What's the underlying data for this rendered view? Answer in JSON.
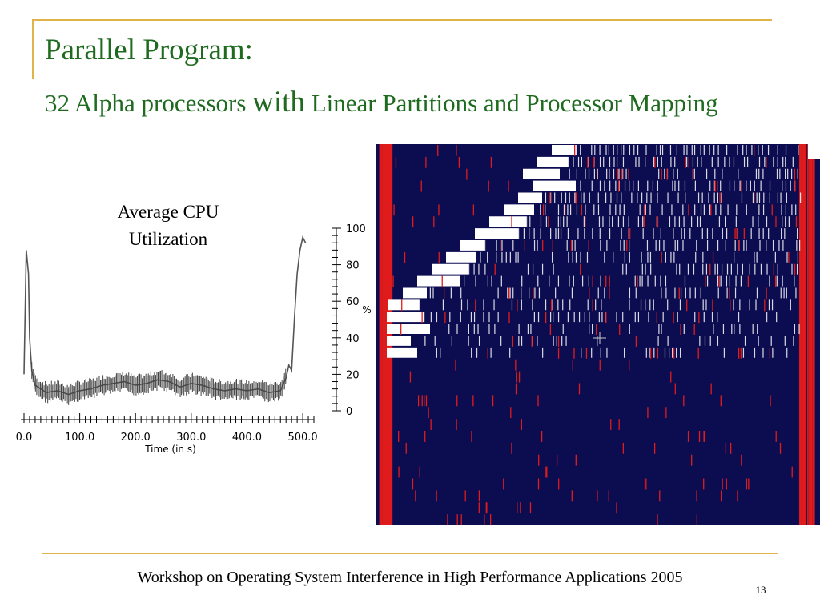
{
  "slide": {
    "title": "Parallel Program:",
    "subtitle_pre": "32 Alpha processors",
    "subtitle_with": "with",
    "subtitle_post": "Linear Partitions and Processor Mapping",
    "cpu_label": "Average CPU Utilization",
    "footer": "Workshop on Operating System Interference in High Performance Applications 2005",
    "slide_number": "13"
  },
  "colors": {
    "title": "#1e6a1e",
    "rule": "#e0b44a",
    "heatmap_bg": "#0c0c50",
    "heatmap_hot": "#e01c1c",
    "heatmap_busy": "#ffffff"
  },
  "chart_data": [
    {
      "type": "line",
      "xlabel": "Time (in s)",
      "x_ticks": [
        "0.0",
        "100.0",
        "200.0",
        "300.0",
        "400.0",
        "500.0"
      ],
      "xlim": [
        0,
        520
      ],
      "y_ticks": [
        "0",
        "20",
        "40",
        "60",
        "80",
        "100"
      ],
      "ylim": [
        0,
        100
      ],
      "yunit": "%",
      "series": [
        {
          "x": [
            0,
            4,
            8,
            10,
            14,
            20,
            30,
            40,
            60,
            80,
            100,
            120,
            140,
            160,
            180,
            200,
            220,
            240,
            260,
            280,
            300,
            320,
            340,
            360,
            380,
            400,
            420,
            440,
            460,
            470,
            475,
            480,
            485,
            490,
            495,
            500,
            505
          ],
          "values": [
            20,
            88,
            75,
            40,
            22,
            14,
            12,
            10,
            11,
            9,
            11,
            12,
            14,
            15,
            16,
            14,
            15,
            17,
            16,
            13,
            15,
            14,
            12,
            11,
            12,
            11,
            12,
            10,
            11,
            18,
            25,
            22,
            50,
            75,
            88,
            95,
            92
          ]
        }
      ]
    },
    {
      "type": "heatmap",
      "rows": 32,
      "description_values": "per-processor activity over time; busy band sweeps across processors"
    }
  ]
}
